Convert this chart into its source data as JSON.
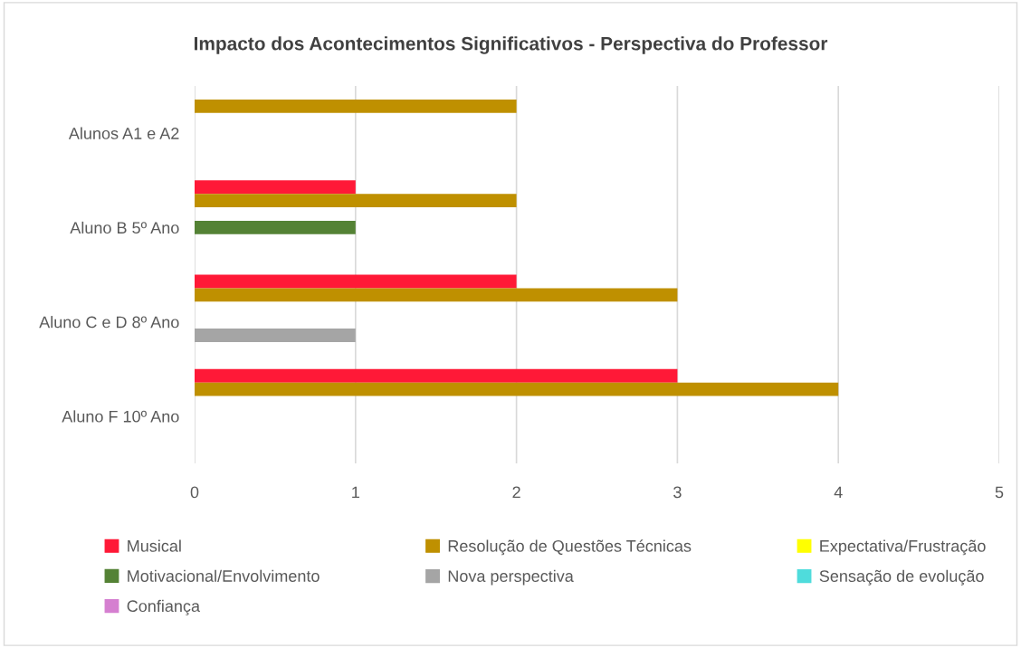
{
  "chart_data": {
    "type": "bar",
    "orientation": "horizontal",
    "title": "Impacto dos Acontecimentos Significativos - Perspectiva do Professor",
    "categories": [
      "Alunos A1 e A2",
      "Aluno B 5º Ano",
      "Aluno C e D 8º Ano",
      "Aluno F 10º Ano"
    ],
    "series": [
      {
        "name": "Musical",
        "color": "#ff1937",
        "values": [
          null,
          1,
          2,
          3
        ]
      },
      {
        "name": "Resolução de Questões Técnicas",
        "color": "#bf9000",
        "values": [
          2,
          2,
          3,
          4
        ]
      },
      {
        "name": "Expectativa/Frustração",
        "color": "#ffff00",
        "values": [
          null,
          null,
          null,
          null
        ]
      },
      {
        "name": "Motivacional/Envolvimento",
        "color": "#548235",
        "values": [
          null,
          1,
          null,
          null
        ]
      },
      {
        "name": "Nova perspectiva",
        "color": "#a5a5a5",
        "values": [
          null,
          null,
          1,
          null
        ]
      },
      {
        "name": "Sensação de evolução",
        "color": "#4fdcdc",
        "values": [
          null,
          null,
          null,
          null
        ]
      },
      {
        "name": "Confiança",
        "color": "#d57fd0",
        "values": [
          null,
          null,
          null,
          null
        ]
      }
    ],
    "xlim": [
      0,
      5
    ],
    "xticks": [
      0,
      1,
      2,
      3,
      4,
      5
    ],
    "grid": "x",
    "legend": "bottom"
  }
}
